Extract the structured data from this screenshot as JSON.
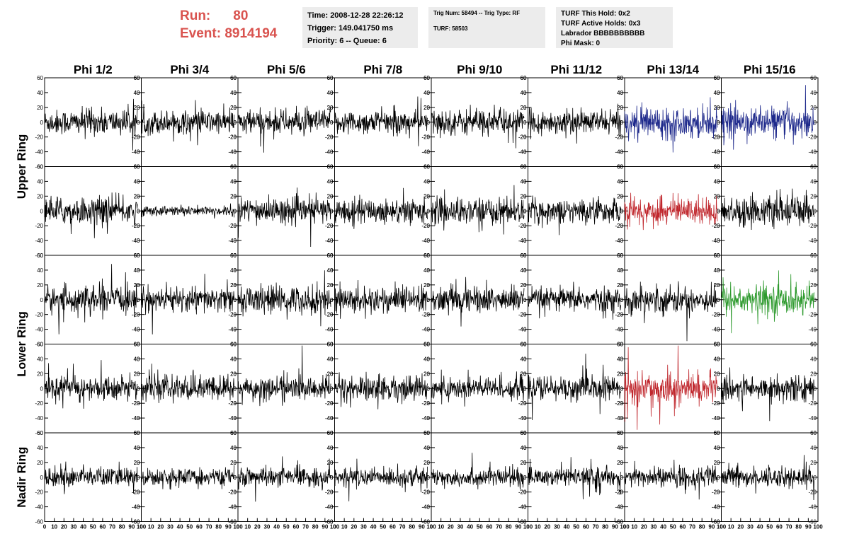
{
  "header": {
    "run_label": "Run:",
    "run_value": "80",
    "event_label": "Event:",
    "event_value": "8914194"
  },
  "info_boxes": {
    "box1": [
      "Time: 2008-12-28 22:26:12",
      "Trigger: 149.041750 ms",
      "Priority: 6 -- Queue: 6"
    ],
    "box2": [
      "Trig Num: 58494 -- Trig Type: RF",
      "",
      "TURF: 58503"
    ],
    "box3": [
      "TURF This Hold: 0x2",
      "TURF Active Holds: 0x3",
      "Labrador BBBBBBBBBB",
      "Phi Mask: 0"
    ]
  },
  "colors": {
    "default": "#000000",
    "blue": "#1f2a8c",
    "red": "#c0272d",
    "green": "#2e9a2e",
    "header_red": "#d9534f"
  },
  "chart_data": {
    "type": "line",
    "description_columns": [
      "Phi 1/2",
      "Phi 3/4",
      "Phi 5/6",
      "Phi 7/8",
      "Phi 9/10",
      "Phi 11/12",
      "Phi 13/14",
      "Phi 15/16"
    ],
    "row_labels": [
      {
        "label": "Upper Ring",
        "rows": [
          0,
          1
        ]
      },
      {
        "label": "Lower Ring",
        "rows": [
          2,
          3
        ]
      },
      {
        "label": "Nadir Ring",
        "rows": [
          4
        ]
      }
    ],
    "xlim": [
      0,
      100
    ],
    "ylim": [
      -60,
      60
    ],
    "xticks": [
      0,
      10,
      20,
      30,
      40,
      50,
      60,
      70,
      80,
      90,
      100
    ],
    "yticks": [
      -60,
      -40,
      -20,
      0,
      20,
      40,
      60
    ],
    "samples": 260,
    "x_max": 96,
    "amplitudes": [
      [
        15,
        14,
        15,
        14,
        15,
        14,
        18,
        18
      ],
      [
        16,
        6,
        15,
        15,
        16,
        14,
        16,
        17
      ],
      [
        16,
        15,
        17,
        16,
        16,
        14,
        16,
        18
      ],
      [
        14,
        15,
        14,
        15,
        14,
        15,
        18,
        15
      ],
      [
        12,
        10,
        11,
        11,
        11,
        11,
        12,
        12
      ]
    ],
    "colors": [
      [
        "default",
        "default",
        "default",
        "default",
        "default",
        "default",
        "blue",
        "blue"
      ],
      [
        "default",
        "default",
        "default",
        "default",
        "default",
        "default",
        "red",
        "default"
      ],
      [
        "default",
        "default",
        "default",
        "default",
        "default",
        "default",
        "default",
        "green"
      ],
      [
        "default",
        "default",
        "default",
        "default",
        "default",
        "default",
        "red",
        "default"
      ],
      [
        "default",
        "default",
        "default",
        "default",
        "default",
        "default",
        "default",
        "default"
      ]
    ]
  }
}
